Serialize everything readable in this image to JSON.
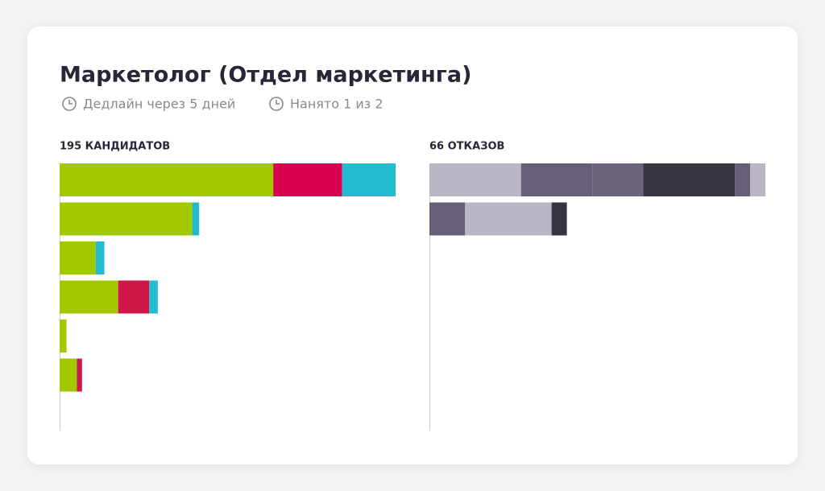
{
  "header": {
    "title": "Маркетолог (Отдел маркетинга)",
    "meta": [
      "Дедлайн через 5 дней",
      "Нанято 1 из 2"
    ]
  },
  "chart_data": [
    {
      "type": "stacked-bar",
      "title": "195 КАНДИДАТОВ",
      "xlim": [
        0,
        195
      ],
      "rows": [
        [
          {
            "value": 124,
            "color": "#a2c800"
          },
          {
            "value": 40,
            "color": "#d8004f"
          },
          {
            "value": 31,
            "color": "#22bcd0"
          }
        ],
        [
          {
            "value": 77,
            "color": "#a2c800"
          },
          {
            "value": 4,
            "color": "#22bcd0"
          }
        ],
        [
          {
            "value": 21,
            "color": "#a2c800"
          },
          {
            "value": 5,
            "color": "#22bcd0"
          }
        ],
        [
          {
            "value": 34,
            "color": "#a2c800"
          },
          {
            "value": 18,
            "color": "#d01848"
          },
          {
            "value": 5,
            "color": "#22bcd0"
          }
        ],
        [
          {
            "value": 4,
            "color": "#a2c800"
          }
        ],
        [
          {
            "value": 10,
            "color": "#a2c800"
          },
          {
            "value": 3,
            "color": "#d01848"
          }
        ],
        []
      ]
    },
    {
      "type": "stacked-bar",
      "title": "66 ОТКАЗОВ",
      "xlim": [
        0,
        66
      ],
      "rows": [
        [
          {
            "value": 18,
            "color": "#bab6c5"
          },
          {
            "value": 14,
            "color": "#675f77"
          },
          {
            "value": 10,
            "color": "#6b6379"
          },
          {
            "value": 18,
            "color": "#37333f"
          },
          {
            "value": 3,
            "color": "#675f77"
          },
          {
            "value": 3,
            "color": "#bab6c5"
          }
        ],
        [
          {
            "value": 7,
            "color": "#675f77"
          },
          {
            "value": 17,
            "color": "#bab6c5"
          },
          {
            "value": 3,
            "color": "#37333f"
          }
        ],
        [],
        [],
        [],
        [],
        []
      ]
    }
  ]
}
